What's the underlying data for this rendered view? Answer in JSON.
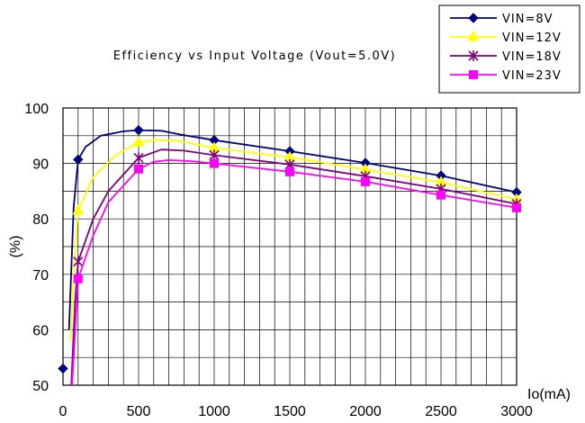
{
  "chart_data": {
    "type": "line",
    "title": "Efficiency vs Input Voltage (Vout=5.0V)",
    "xlabel": "Io(mA)",
    "ylabel": "(%)",
    "xlim": [
      0,
      3000
    ],
    "ylim": [
      50,
      100
    ],
    "x_ticks": [
      "0",
      "500",
      "1000",
      "1500",
      "2000",
      "2500",
      "3000"
    ],
    "y_ticks": [
      "50",
      "60",
      "70",
      "80",
      "90",
      "100"
    ],
    "grid": true,
    "legend_position": "top-right",
    "series": [
      {
        "name": "VIN=8V",
        "color": "#000080",
        "marker": "diamond",
        "points": [
          [
            0,
            53
          ],
          [
            100,
            90.7
          ],
          [
            500,
            96
          ],
          [
            1000,
            94.2
          ],
          [
            1500,
            92.2
          ],
          [
            2000,
            90.1
          ],
          [
            2500,
            87.8
          ],
          [
            3000,
            84.8
          ]
        ],
        "curve": [
          [
            40,
            60
          ],
          [
            70,
            82
          ],
          [
            100,
            90.7
          ],
          [
            150,
            93
          ],
          [
            250,
            95
          ],
          [
            400,
            95.8
          ],
          [
            500,
            96
          ],
          [
            650,
            95.9
          ],
          [
            800,
            95.1
          ],
          [
            1000,
            94.2
          ],
          [
            1500,
            92.2
          ],
          [
            2000,
            90.1
          ],
          [
            2500,
            87.8
          ],
          [
            3000,
            84.8
          ]
        ]
      },
      {
        "name": "VIN=12V",
        "color": "#ffff00",
        "marker": "triangle",
        "points": [
          [
            100,
            81.5
          ],
          [
            500,
            93.8
          ],
          [
            1000,
            92.8
          ],
          [
            1500,
            91.1
          ],
          [
            2000,
            88.9
          ],
          [
            2500,
            86.6
          ],
          [
            3000,
            83.5
          ]
        ],
        "curve": [
          [
            50,
            58
          ],
          [
            75,
            72
          ],
          [
            100,
            81.5
          ],
          [
            200,
            87.5
          ],
          [
            350,
            91.5
          ],
          [
            500,
            93.8
          ],
          [
            600,
            94.2
          ],
          [
            750,
            94.1
          ],
          [
            1000,
            92.8
          ],
          [
            1500,
            91.1
          ],
          [
            2000,
            88.9
          ],
          [
            2500,
            86.6
          ],
          [
            3000,
            83.5
          ]
        ]
      },
      {
        "name": "VIN=18V",
        "color": "#800080",
        "marker": "asterisk",
        "points": [
          [
            100,
            72.3
          ],
          [
            500,
            91
          ],
          [
            1000,
            91.5
          ],
          [
            1500,
            89.8
          ],
          [
            2000,
            87.7
          ],
          [
            2500,
            85.4
          ],
          [
            3000,
            82.7
          ]
        ],
        "curve": [
          [
            55,
            50
          ],
          [
            80,
            65
          ],
          [
            100,
            72.3
          ],
          [
            200,
            80
          ],
          [
            300,
            85
          ],
          [
            500,
            91
          ],
          [
            650,
            92.5
          ],
          [
            800,
            92.3
          ],
          [
            1000,
            91.5
          ],
          [
            1500,
            89.8
          ],
          [
            2000,
            87.7
          ],
          [
            2500,
            85.4
          ],
          [
            3000,
            82.7
          ]
        ]
      },
      {
        "name": "VIN=23V",
        "color": "#ff00ff",
        "marker": "square",
        "points": [
          [
            100,
            69.2
          ],
          [
            500,
            89
          ],
          [
            1000,
            90
          ],
          [
            1500,
            88.5
          ],
          [
            2000,
            86.7
          ],
          [
            2500,
            84.3
          ],
          [
            3000,
            82
          ]
        ],
        "curve": [
          [
            60,
            50
          ],
          [
            85,
            62
          ],
          [
            100,
            69.2
          ],
          [
            200,
            77
          ],
          [
            300,
            83
          ],
          [
            500,
            89
          ],
          [
            600,
            90.3
          ],
          [
            700,
            90.6
          ],
          [
            850,
            90.4
          ],
          [
            1000,
            90
          ],
          [
            1500,
            88.5
          ],
          [
            2000,
            86.7
          ],
          [
            2500,
            84.3
          ],
          [
            3000,
            82
          ]
        ]
      }
    ]
  }
}
